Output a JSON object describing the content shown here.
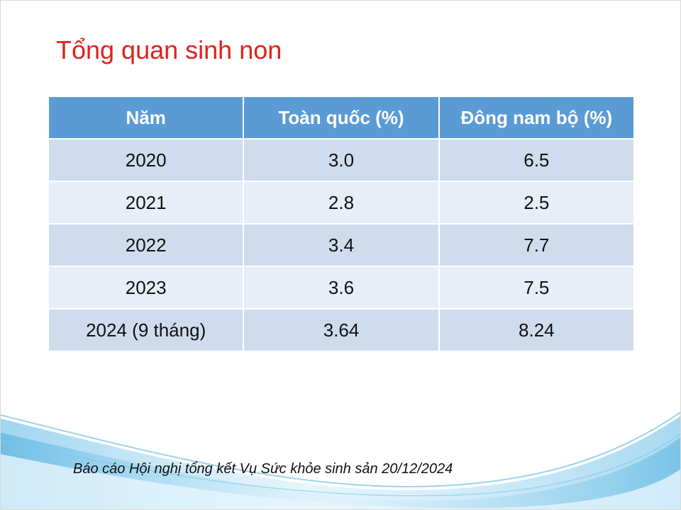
{
  "slide": {
    "title": "Tổng quan sinh non",
    "footer": "Báo cáo Hội nghị tổng kết Vụ Sức khỏe sinh sản 20/12/2024"
  },
  "table": {
    "headers": [
      "Năm",
      "Toàn quốc (%)",
      "Đông nam bộ (%)"
    ],
    "rows": [
      [
        "2020",
        "3.0",
        "6.5"
      ],
      [
        "2021",
        "2.8",
        "2.5"
      ],
      [
        "2022",
        "3.4",
        "7.7"
      ],
      [
        "2023",
        "3.6",
        "7.5"
      ],
      [
        "2024 (9 tháng)",
        "3.64",
        "8.24"
      ]
    ]
  },
  "colors": {
    "title": "#e0201b",
    "header_bg": "#5b9bd5",
    "row_odd": "#cfdcee",
    "row_even": "#e8eef7",
    "wave": "#4fb3e3"
  },
  "decoration": {
    "background": "wave-graphic"
  }
}
